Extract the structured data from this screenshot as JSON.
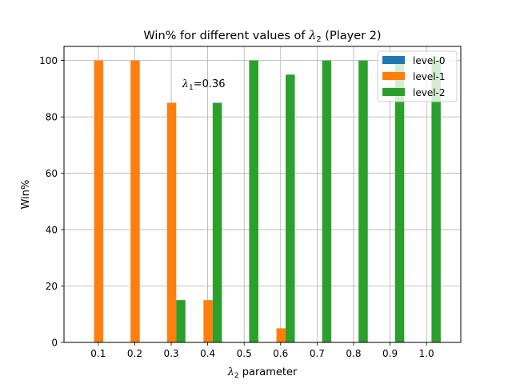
{
  "chart_data": {
    "type": "bar",
    "title": {
      "prefix": "Win% for different values of ",
      "symbol": "λ",
      "subscript": "2",
      "suffix": " (Player 2)"
    },
    "xlabel": {
      "symbol": "λ",
      "subscript": "2",
      "suffix": " parameter"
    },
    "ylabel": "Win%",
    "categories": [
      "0.1",
      "0.2",
      "0.3",
      "0.4",
      "0.5",
      "0.6",
      "0.7",
      "0.8",
      "0.9",
      "1.0"
    ],
    "ylim": [
      0,
      105
    ],
    "yticks": [
      0,
      20,
      40,
      60,
      80,
      100
    ],
    "grid": true,
    "legend_position": "top-right",
    "series": [
      {
        "name": "level-0",
        "color": "#1f77b4",
        "values": [
          0,
          0,
          0,
          0,
          0,
          0,
          0,
          0,
          0,
          0
        ]
      },
      {
        "name": "level-1",
        "color": "#ff7f0e",
        "values": [
          100,
          100,
          85,
          15,
          0,
          5,
          0,
          0,
          0,
          0
        ]
      },
      {
        "name": "level-2",
        "color": "#2ca02c",
        "values": [
          0,
          0,
          15,
          85,
          100,
          95,
          100,
          100,
          100,
          100
        ]
      }
    ],
    "annotation": {
      "symbol": "λ",
      "subscript": "1",
      "suffix": "=0.36",
      "at_category": "0.4",
      "at_value": 92
    }
  }
}
